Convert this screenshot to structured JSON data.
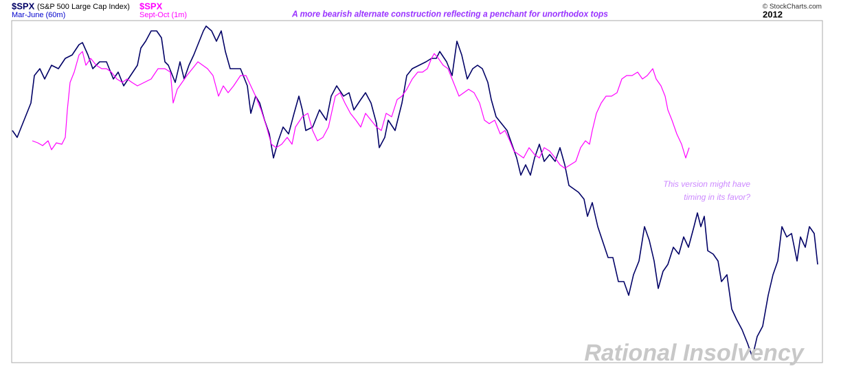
{
  "chart_data": {
    "type": "line",
    "title": "A more bearish alternate construction reflecting a penchant for unorthodox tops",
    "source": "© StockCharts.com",
    "year": "2012",
    "annotation": [
      "This version might have",
      "timing in its favor?"
    ],
    "watermark": "Rational Insolvency",
    "xlim": [
      17,
      1197
    ],
    "ylim": [
      0,
      498
    ],
    "series": [
      {
        "name": "$SPX",
        "description": "(S&P 500 Large Cap Index)",
        "period": "Mar-June (60m)",
        "color": "#000066",
        "x": [
          18,
          25,
          35,
          45,
          50,
          58,
          65,
          75,
          85,
          95,
          105,
          115,
          120,
          128,
          135,
          145,
          155,
          165,
          172,
          180,
          190,
          200,
          205,
          212,
          220,
          228,
          235,
          240,
          245,
          255,
          262,
          268,
          275,
          282,
          290,
          296,
          300,
          308,
          315,
          322,
          328,
          335,
          343,
          350,
          360,
          365,
          372,
          378,
          385,
          392,
          398,
          405,
          412,
          420,
          428,
          435,
          440,
          445,
          455,
          465,
          475,
          482,
          490,
          500,
          508,
          515,
          525,
          532,
          540,
          548,
          552,
          560,
          565,
          575,
          585,
          592,
          600,
          610,
          620,
          628,
          635,
          640,
          650,
          658,
          665,
          672,
          680,
          688,
          695,
          702,
          710,
          715,
          722,
          730,
          738,
          745,
          752,
          758,
          765,
          772,
          778,
          785,
          792,
          800,
          808,
          815,
          822,
          828,
          835,
          842,
          850,
          855,
          862,
          870,
          880,
          885,
          892,
          900,
          908,
          915,
          922,
          930,
          938,
          945,
          952,
          958,
          965,
          972,
          980,
          988,
          995,
          1002,
          1010,
          1015,
          1020,
          1025,
          1030,
          1038,
          1045,
          1050,
          1058,
          1065,
          1072,
          1080,
          1088,
          1095,
          1102,
          1110,
          1118,
          1125,
          1132,
          1138,
          1145,
          1152,
          1160,
          1165,
          1172,
          1178,
          1185,
          1190
        ],
        "values": [
          338,
          328,
          353,
          378,
          418,
          428,
          413,
          433,
          428,
          443,
          448,
          463,
          466,
          448,
          428,
          438,
          438,
          413,
          423,
          403,
          418,
          433,
          458,
          468,
          483,
          483,
          473,
          438,
          433,
          408,
          438,
          413,
          433,
          448,
          468,
          483,
          490,
          483,
          468,
          483,
          453,
          428,
          428,
          428,
          403,
          363,
          388,
          378,
          353,
          333,
          298,
          323,
          343,
          333,
          363,
          388,
          368,
          338,
          343,
          368,
          353,
          388,
          403,
          388,
          393,
          368,
          383,
          393,
          378,
          348,
          313,
          328,
          353,
          338,
          378,
          418,
          428,
          433,
          438,
          443,
          443,
          453,
          438,
          418,
          468,
          448,
          413,
          428,
          433,
          428,
          408,
          383,
          358,
          348,
          338,
          318,
          298,
          273,
          288,
          273,
          298,
          318,
          293,
          303,
          293,
          313,
          288,
          258,
          253,
          248,
          238,
          213,
          233,
          198,
          168,
          153,
          153,
          118,
          118,
          98,
          128,
          148,
          198,
          178,
          148,
          108,
          133,
          143,
          168,
          158,
          183,
          168,
          198,
          218,
          198,
          213,
          163,
          158,
          148,
          118,
          128,
          78,
          63,
          48,
          28,
          8,
          38,
          53,
          98,
          128,
          148,
          198,
          183,
          188,
          148,
          183,
          168,
          198,
          188,
          143
        ]
      },
      {
        "name": "$SPX",
        "period": "Sept-Oct (1m)",
        "color": "#ff00ff",
        "x": [
          47,
          55,
          62,
          70,
          75,
          82,
          90,
          95,
          98,
          102,
          108,
          115,
          120,
          125,
          132,
          140,
          148,
          155,
          162,
          170,
          178,
          185,
          192,
          200,
          210,
          220,
          230,
          240,
          248,
          252,
          258,
          265,
          272,
          280,
          288,
          295,
          302,
          310,
          318,
          325,
          332,
          340,
          350,
          358,
          365,
          372,
          380,
          388,
          395,
          402,
          410,
          418,
          425,
          430,
          440,
          448,
          455,
          462,
          470,
          478,
          488,
          495,
          502,
          510,
          518,
          525,
          532,
          540,
          548,
          555,
          562,
          570,
          578,
          585,
          592,
          600,
          608,
          615,
          622,
          628,
          632,
          638,
          645,
          652,
          660,
          668,
          675,
          682,
          690,
          698,
          705,
          712,
          720,
          728,
          735,
          742,
          748,
          755,
          762,
          770,
          778,
          785,
          792,
          800,
          808,
          815,
          822,
          830,
          838,
          845,
          852,
          858,
          862,
          868,
          875,
          882,
          890,
          898,
          905,
          912,
          920,
          928,
          935,
          942,
          950,
          955,
          962,
          968,
          972,
          978,
          985,
          992,
          998,
          1003
        ],
        "values": [
          323,
          320,
          316,
          323,
          310,
          320,
          318,
          328,
          368,
          408,
          423,
          448,
          453,
          433,
          443,
          433,
          428,
          428,
          423,
          413,
          408,
          413,
          408,
          403,
          408,
          413,
          428,
          428,
          423,
          378,
          398,
          408,
          418,
          428,
          438,
          433,
          428,
          418,
          388,
          403,
          393,
          403,
          418,
          418,
          403,
          388,
          368,
          343,
          318,
          313,
          318,
          328,
          318,
          343,
          358,
          363,
          338,
          323,
          328,
          343,
          388,
          393,
          378,
          363,
          353,
          343,
          363,
          353,
          343,
          338,
          363,
          358,
          383,
          388,
          398,
          413,
          423,
          423,
          428,
          443,
          450,
          443,
          433,
          428,
          408,
          388,
          393,
          398,
          393,
          378,
          353,
          348,
          353,
          333,
          338,
          323,
          308,
          303,
          298,
          313,
          303,
          298,
          313,
          308,
          298,
          288,
          283,
          288,
          293,
          313,
          323,
          318,
          338,
          363,
          378,
          388,
          388,
          393,
          413,
          418,
          418,
          423,
          413,
          418,
          428,
          413,
          403,
          388,
          368,
          353,
          333,
          318,
          298,
          313
        ]
      }
    ]
  }
}
